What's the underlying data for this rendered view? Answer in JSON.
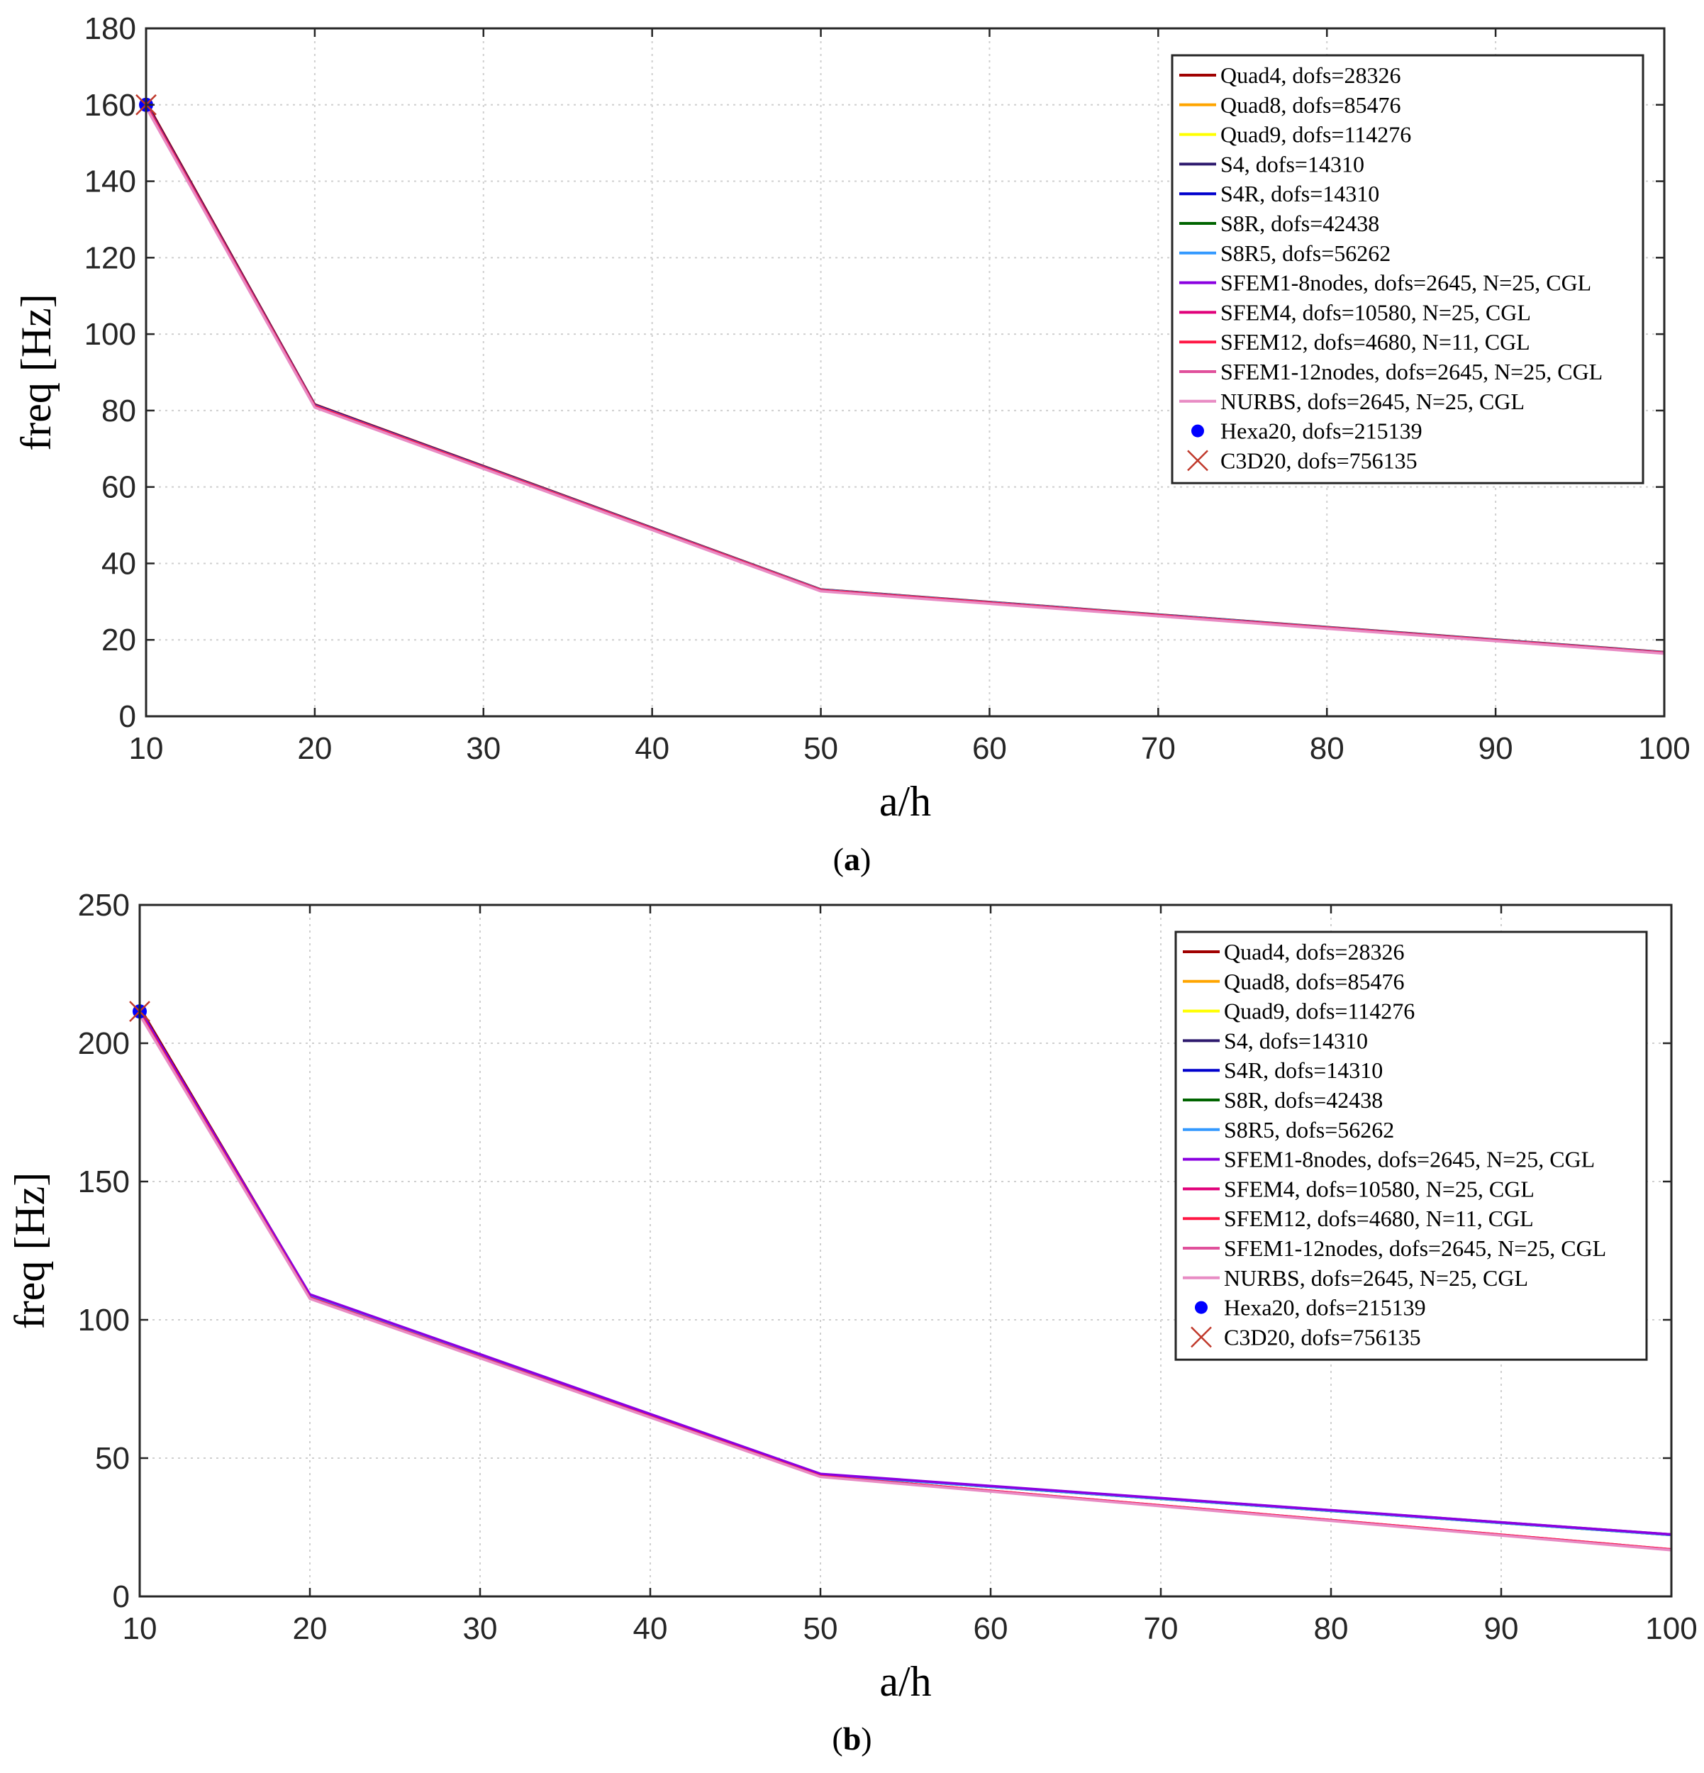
{
  "chart_data": [
    {
      "type": "line",
      "panel_label": "a",
      "xlabel": "a/h",
      "ylabel": "freq [Hz]",
      "xlim": [
        10,
        100
      ],
      "ylim": [
        0,
        180
      ],
      "xticks": [
        10,
        20,
        30,
        40,
        50,
        60,
        70,
        80,
        90,
        100
      ],
      "yticks": [
        0,
        20,
        40,
        60,
        80,
        100,
        120,
        140,
        160,
        180
      ],
      "grid": true,
      "legend_position": "top-right",
      "x": [
        10,
        20,
        50,
        100
      ],
      "series": [
        {
          "name": "Quad4, dofs=28326",
          "color": "#A00000",
          "marker": "line",
          "x": [
            10,
            20,
            50,
            100
          ],
          "values": [
            160.8,
            81.6,
            33.2,
            16.8
          ]
        },
        {
          "name": "Quad8, dofs=85476",
          "color": "#FFA500",
          "marker": "line",
          "x": [
            10,
            20,
            50,
            100
          ],
          "values": [
            160.2,
            81.3,
            33.1,
            16.7
          ]
        },
        {
          "name": "Quad9, dofs=114276",
          "color": "#FFFF00",
          "marker": "line",
          "x": [
            10,
            20,
            50,
            100
          ],
          "values": [
            160.2,
            81.3,
            33.1,
            16.7
          ]
        },
        {
          "name": "S4, dofs=14310",
          "color": "#2E1A6E",
          "marker": "line",
          "x": [
            10,
            20,
            50,
            100
          ],
          "values": [
            160.3,
            81.4,
            33.1,
            16.7
          ]
        },
        {
          "name": "S4R, dofs=14310",
          "color": "#0000CD",
          "marker": "line",
          "x": [
            10,
            20,
            50,
            100
          ],
          "values": [
            160.3,
            81.4,
            33.1,
            16.7
          ]
        },
        {
          "name": "S8R, dofs=42438",
          "color": "#006400",
          "marker": "line",
          "x": [
            10,
            20,
            50,
            100
          ],
          "values": [
            160.1,
            81.3,
            33.1,
            16.7
          ]
        },
        {
          "name": "S8R5, dofs=56262",
          "color": "#3399FF",
          "marker": "line",
          "x": [
            10,
            20,
            50,
            100
          ],
          "values": [
            160.1,
            81.3,
            33.1,
            16.7
          ]
        },
        {
          "name": "SFEM1-8nodes, dofs=2645, N=25, CGL",
          "color": "#8A00E0",
          "marker": "line",
          "x": [
            10,
            20,
            50,
            100
          ],
          "values": [
            160.0,
            81.2,
            33.0,
            16.6
          ]
        },
        {
          "name": "SFEM4, dofs=10580, N=25, CGL",
          "color": "#E0007A",
          "marker": "line",
          "x": [
            10,
            20,
            50,
            100
          ],
          "values": [
            160.0,
            81.2,
            33.0,
            16.6
          ]
        },
        {
          "name": "SFEM12, dofs=4680, N=11, CGL",
          "color": "#FF1744",
          "marker": "line",
          "x": [
            10,
            20,
            50,
            100
          ],
          "values": [
            160.0,
            81.2,
            33.0,
            16.6
          ]
        },
        {
          "name": "SFEM1-12nodes, dofs=2645, N=25, CGL",
          "color": "#E0509B",
          "marker": "line",
          "x": [
            10,
            20,
            50,
            100
          ],
          "values": [
            159.5,
            80.9,
            32.8,
            16.5
          ]
        },
        {
          "name": "NURBS, dofs=2645, N=25, CGL",
          "color": "#E88CC4",
          "marker": "line",
          "x": [
            10,
            20,
            50,
            100
          ],
          "values": [
            159.3,
            80.8,
            32.7,
            16.4
          ]
        },
        {
          "name": "Hexa20, dofs=215139",
          "color": "#0000FF",
          "marker": "dot",
          "x": [
            10
          ],
          "values": [
            160.0
          ]
        },
        {
          "name": "C3D20, dofs=756135",
          "color": "#C0392B",
          "marker": "x",
          "x": [
            10
          ],
          "values": [
            160.0
          ]
        }
      ]
    },
    {
      "type": "line",
      "panel_label": "b",
      "xlabel": "a/h",
      "ylabel": "freq [Hz]",
      "xlim": [
        10,
        100
      ],
      "ylim": [
        0,
        250
      ],
      "xticks": [
        10,
        20,
        30,
        40,
        50,
        60,
        70,
        80,
        90,
        100
      ],
      "yticks": [
        0,
        50,
        100,
        150,
        200,
        250
      ],
      "grid": true,
      "legend_position": "top-right",
      "x": [
        10,
        20,
        50,
        100
      ],
      "series": [
        {
          "name": "Quad4, dofs=28326",
          "color": "#A00000",
          "marker": "line",
          "x": [
            10,
            20,
            50,
            100
          ],
          "values": [
            213.0,
            109.0,
            44.2,
            22.4
          ]
        },
        {
          "name": "Quad8, dofs=85476",
          "color": "#FFA500",
          "marker": "line",
          "x": [
            10,
            20,
            50,
            100
          ],
          "values": [
            212.0,
            108.6,
            44.0,
            22.2
          ]
        },
        {
          "name": "Quad9, dofs=114276",
          "color": "#FFFF00",
          "marker": "line",
          "x": [
            10,
            20,
            50,
            100
          ],
          "values": [
            212.0,
            108.6,
            44.0,
            22.2
          ]
        },
        {
          "name": "S4, dofs=14310",
          "color": "#2E1A6E",
          "marker": "line",
          "x": [
            10,
            20,
            50,
            100
          ],
          "values": [
            212.2,
            108.8,
            44.1,
            22.3
          ]
        },
        {
          "name": "S4R, dofs=14310",
          "color": "#0000CD",
          "marker": "line",
          "x": [
            10,
            20,
            50,
            100
          ],
          "values": [
            212.2,
            108.8,
            44.1,
            22.3
          ]
        },
        {
          "name": "S8R, dofs=42438",
          "color": "#006400",
          "marker": "line",
          "x": [
            10,
            20,
            50,
            100
          ],
          "values": [
            212.0,
            108.6,
            44.0,
            22.2
          ]
        },
        {
          "name": "S8R5, dofs=56262",
          "color": "#3399FF",
          "marker": "line",
          "x": [
            10,
            20,
            50,
            100
          ],
          "values": [
            212.0,
            108.6,
            44.0,
            22.2
          ]
        },
        {
          "name": "SFEM1-8nodes, dofs=2645, N=25, CGL",
          "color": "#8A00E0",
          "marker": "line",
          "x": [
            10,
            20,
            50,
            100
          ],
          "values": [
            212.0,
            109.2,
            44.3,
            22.4
          ]
        },
        {
          "name": "SFEM4, dofs=10580, N=25, CGL",
          "color": "#E0007A",
          "marker": "line",
          "x": [
            10,
            20,
            50,
            100
          ],
          "values": [
            211.0,
            108.0,
            43.5,
            17.0
          ]
        },
        {
          "name": "SFEM12, dofs=4680, N=11, CGL",
          "color": "#FF1744",
          "marker": "line",
          "x": [
            10,
            20,
            50,
            100
          ],
          "values": [
            211.0,
            108.0,
            43.5,
            17.0
          ]
        },
        {
          "name": "SFEM1-12nodes, dofs=2645, N=25, CGL",
          "color": "#E0509B",
          "marker": "line",
          "x": [
            10,
            20,
            50,
            100
          ],
          "values": [
            210.5,
            107.8,
            43.3,
            16.8
          ]
        },
        {
          "name": "NURBS, dofs=2645, N=25, CGL",
          "color": "#E88CC4",
          "marker": "line",
          "x": [
            10,
            20,
            50,
            100
          ],
          "values": [
            210.2,
            107.6,
            43.2,
            16.7
          ]
        },
        {
          "name": "Hexa20, dofs=215139",
          "color": "#0000FF",
          "marker": "dot",
          "x": [
            10
          ],
          "values": [
            211.5
          ]
        },
        {
          "name": "C3D20, dofs=756135",
          "color": "#C0392B",
          "marker": "x",
          "x": [
            10
          ],
          "values": [
            211.5
          ]
        }
      ]
    }
  ]
}
